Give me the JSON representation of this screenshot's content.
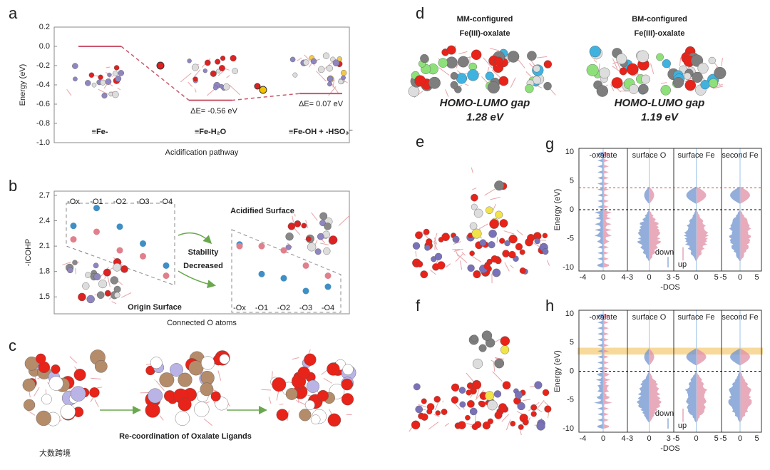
{
  "figure": {
    "panel_labels": [
      "a",
      "b",
      "c",
      "d",
      "e",
      "f",
      "g",
      "h"
    ],
    "c": {
      "caption": "Re-coordination of Oxalate Ligands"
    },
    "d": {
      "items": [
        {
          "title": [
            "MM-configured",
            "Fe(III)-oxalate"
          ],
          "gap_label": "HOMO-LUMO gap",
          "gap": "1.28 eV"
        },
        {
          "title": [
            "BM-configured",
            "Fe(III)-oxalate"
          ],
          "gap_label": "HOMO-LUMO gap",
          "gap": "1.19 eV"
        }
      ]
    },
    "dos": {
      "columns": [
        "-oxalate",
        "surface O",
        "surface Fe",
        "second Fe"
      ],
      "ylabel": "Energy (eV)",
      "xlabel": "-DOS",
      "yticks": [
        "10",
        "5",
        "0",
        "-5",
        "-10"
      ],
      "xticks": [
        [
          "-4",
          "0",
          "4"
        ],
        [
          "-3",
          "0",
          "3"
        ],
        [
          "-5",
          "0",
          "5"
        ],
        [
          "-5",
          "0",
          "5"
        ]
      ],
      "down": "down",
      "up": "up"
    },
    "watermark": "大数跨境"
  },
  "chart_data": [
    {
      "type": "level",
      "ylabel": "Energy (eV)",
      "xlabel": "Acidification pathway",
      "categories": [
        "≡Fe-",
        "≡Fe-H₂O",
        "≡Fe-OH + -HSO₃⁻"
      ],
      "values": [
        0,
        -0.56,
        -0.49
      ],
      "color": "#c9566b",
      "annotations": [
        "ΔE= -0.56 eV",
        "ΔE= 0.07 eV"
      ],
      "ylim": [
        -1.0,
        0.2
      ],
      "yticks": [
        0.2,
        {
          "value": 0,
          "label": "0.0"
        },
        -0.2,
        -0.4,
        -0.6,
        -0.8,
        {
          "value": -1.0,
          "label": "-1.0"
        }
      ]
    },
    {
      "type": "scatter",
      "ylabel": "-ICOHP",
      "xlabel": "Connected O atoms",
      "ylim": [
        1.3,
        2.75
      ],
      "yticks": [
        1.5,
        1.8,
        2.1,
        2.4,
        2.7
      ],
      "annotations": [
        "Stability",
        "Decreased"
      ],
      "groups": [
        {
          "label": "Origin Surface",
          "categories": [
            "-Ox",
            "-O1",
            "-O2",
            "-O3",
            "-O4"
          ],
          "series": [
            {
              "color": "#3f8fc4",
              "values": [
                2.34,
                2.55,
                2.33,
                2.13,
                1.87
              ]
            },
            {
              "color": "#e0808c",
              "values": [
                2.18,
                2.27,
                2.05,
                1.98,
                1.75
              ]
            }
          ]
        },
        {
          "label": "Acidified Surface",
          "categories": [
            "-Ox",
            "-O1",
            "-O2",
            "-O3",
            "-O4"
          ],
          "series": [
            {
              "color": "#3f8fc4",
              "values": [
                2.12,
                1.77,
                1.72,
                1.57,
                1.62
              ]
            },
            {
              "color": "#e0808c",
              "values": [
                2.1,
                2.1,
                2.05,
                1.87,
                1.75
              ]
            }
          ]
        }
      ]
    }
  ]
}
